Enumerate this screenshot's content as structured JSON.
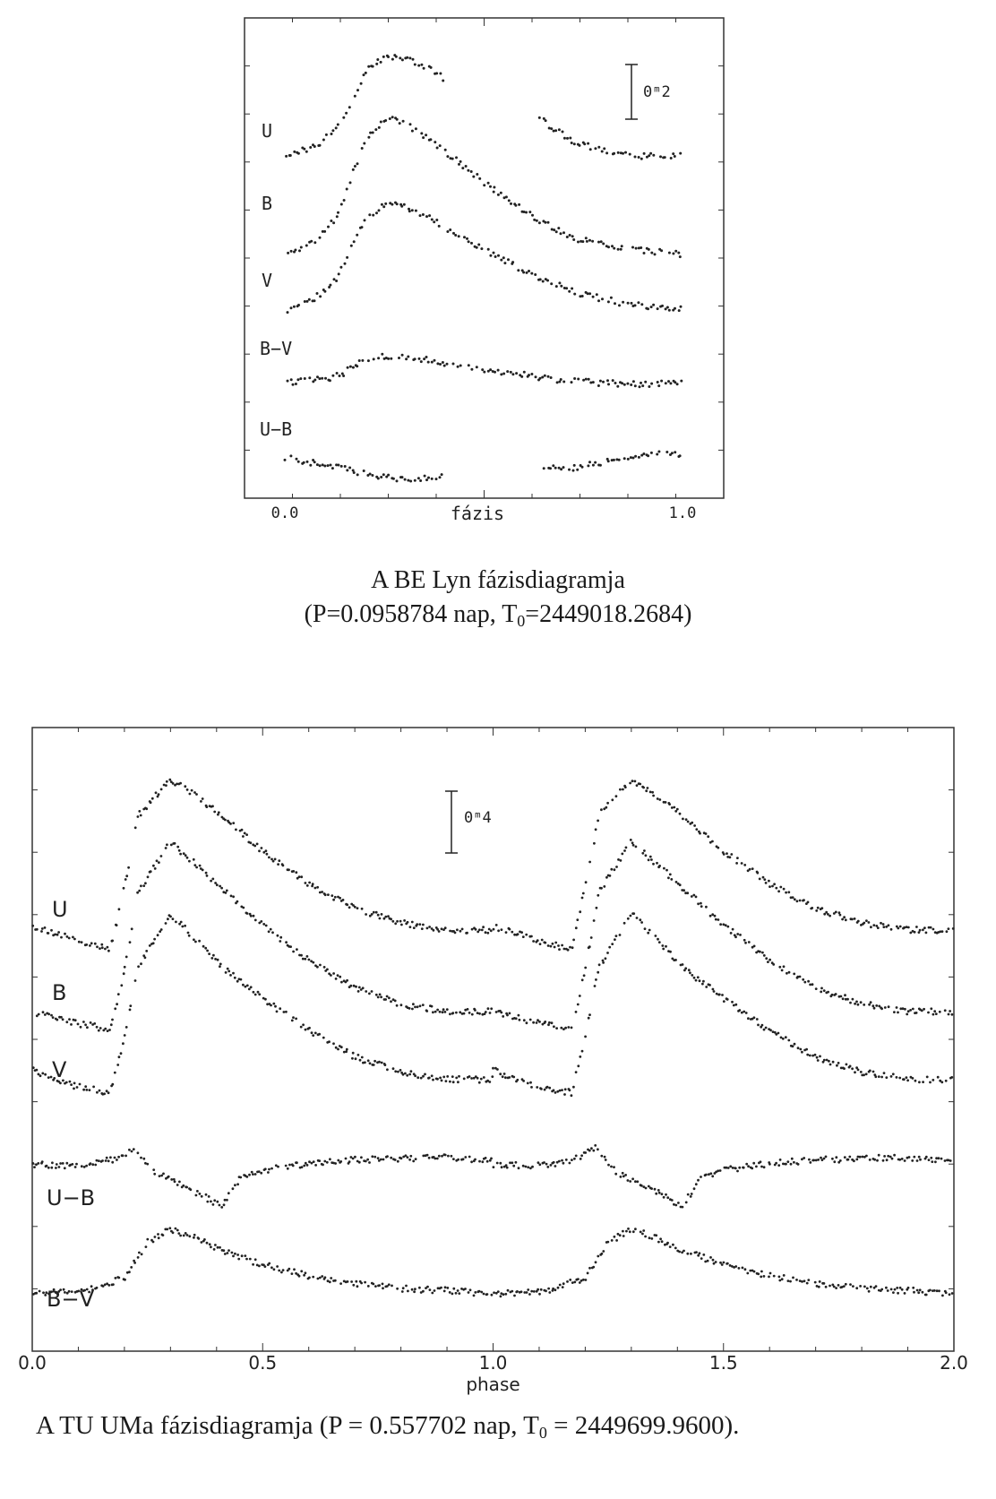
{
  "chart_data": [
    {
      "type": "scatter",
      "title": "A BE Lyn fázisdiagramja",
      "subtitle_prefix": "(P=0.0958784 nap, T",
      "subtitle_sub": "0",
      "subtitle_suffix": "=2449018.2684)",
      "xlabel": "fázis",
      "xlim": [
        0.0,
        1.0
      ],
      "x_tick_labels": [
        "0.0",
        "1.0"
      ],
      "scale_bar": "0ᵐ2",
      "curve_labels": [
        "U",
        "B",
        "V",
        "B−V",
        "U−B"
      ],
      "series": [
        {
          "name": "U",
          "gaps": [
            [
              0.4,
              0.64
            ]
          ],
          "points": [
            [
              0.0,
              0.8
            ],
            [
              0.08,
              0.72
            ],
            [
              0.14,
              0.55
            ],
            [
              0.18,
              0.3
            ],
            [
              0.21,
              0.1
            ],
            [
              0.26,
              0.0
            ],
            [
              0.31,
              0.02
            ],
            [
              0.36,
              0.1
            ],
            [
              0.4,
              0.18
            ],
            [
              0.64,
              0.5
            ],
            [
              0.72,
              0.68
            ],
            [
              0.8,
              0.76
            ],
            [
              0.9,
              0.8
            ],
            [
              1.0,
              0.8
            ]
          ]
        },
        {
          "name": "B",
          "points": [
            [
              0.0,
              1.0
            ],
            [
              0.07,
              0.9
            ],
            [
              0.13,
              0.72
            ],
            [
              0.17,
              0.4
            ],
            [
              0.21,
              0.12
            ],
            [
              0.26,
              0.0
            ],
            [
              0.33,
              0.08
            ],
            [
              0.42,
              0.28
            ],
            [
              0.52,
              0.5
            ],
            [
              0.62,
              0.7
            ],
            [
              0.72,
              0.86
            ],
            [
              0.84,
              0.94
            ],
            [
              1.0,
              0.98
            ]
          ]
        },
        {
          "name": "V",
          "points": [
            [
              0.0,
              1.0
            ],
            [
              0.07,
              0.9
            ],
            [
              0.13,
              0.72
            ],
            [
              0.17,
              0.4
            ],
            [
              0.21,
              0.12
            ],
            [
              0.27,
              0.0
            ],
            [
              0.34,
              0.1
            ],
            [
              0.43,
              0.3
            ],
            [
              0.53,
              0.5
            ],
            [
              0.63,
              0.68
            ],
            [
              0.74,
              0.84
            ],
            [
              0.86,
              0.94
            ],
            [
              1.0,
              0.98
            ]
          ]
        },
        {
          "name": "B−V",
          "points": [
            [
              0.0,
              0.7
            ],
            [
              0.08,
              0.62
            ],
            [
              0.14,
              0.5
            ],
            [
              0.18,
              0.2
            ],
            [
              0.25,
              0.0
            ],
            [
              0.32,
              0.05
            ],
            [
              0.42,
              0.22
            ],
            [
              0.55,
              0.42
            ],
            [
              0.68,
              0.6
            ],
            [
              0.8,
              0.7
            ],
            [
              0.9,
              0.72
            ],
            [
              1.0,
              0.7
            ]
          ]
        },
        {
          "name": "U−B",
          "gaps": [
            [
              0.4,
              0.64
            ]
          ],
          "points": [
            [
              0.0,
              0.2
            ],
            [
              0.1,
              0.45
            ],
            [
              0.2,
              0.8
            ],
            [
              0.28,
              1.0
            ],
            [
              0.34,
              0.95
            ],
            [
              0.4,
              0.9
            ],
            [
              0.64,
              0.6
            ],
            [
              0.74,
              0.55
            ],
            [
              0.84,
              0.2
            ],
            [
              0.92,
              0.05
            ],
            [
              1.0,
              0.1
            ]
          ]
        }
      ]
    },
    {
      "type": "scatter",
      "title_prefix": "A TU UMa fázisdiagramja (P = 0.557702 nap, T",
      "title_sub": "0",
      "title_suffix": " = 2449699.9600).",
      "xlabel": "phase",
      "xlim": [
        0.0,
        2.0
      ],
      "x_tick_labels": [
        "0.0",
        "0.5",
        "1.0",
        "1.5",
        "2.0"
      ],
      "scale_bar": "0ᵐ4",
      "curve_labels": [
        "U",
        "B",
        "V",
        "U−B",
        "B−V"
      ],
      "series": [
        {
          "name": "U",
          "points": [
            [
              0.0,
              0.82
            ],
            [
              0.1,
              0.9
            ],
            [
              0.17,
              0.95
            ],
            [
              0.2,
              0.6
            ],
            [
              0.23,
              0.2
            ],
            [
              0.3,
              0.0
            ],
            [
              0.36,
              0.1
            ],
            [
              0.42,
              0.22
            ],
            [
              0.5,
              0.4
            ],
            [
              0.6,
              0.58
            ],
            [
              0.7,
              0.72
            ],
            [
              0.8,
              0.8
            ],
            [
              0.9,
              0.84
            ],
            [
              1.0,
              0.84
            ]
          ]
        },
        {
          "name": "B",
          "points": [
            [
              0.0,
              0.86
            ],
            [
              0.1,
              0.92
            ],
            [
              0.17,
              0.95
            ],
            [
              0.2,
              0.65
            ],
            [
              0.23,
              0.25
            ],
            [
              0.3,
              0.0
            ],
            [
              0.36,
              0.12
            ],
            [
              0.42,
              0.25
            ],
            [
              0.5,
              0.42
            ],
            [
              0.6,
              0.6
            ],
            [
              0.7,
              0.74
            ],
            [
              0.8,
              0.82
            ],
            [
              0.9,
              0.86
            ],
            [
              1.0,
              0.86
            ]
          ]
        },
        {
          "name": "V",
          "points": [
            [
              0.0,
              0.83
            ],
            [
              0.1,
              0.92
            ],
            [
              0.17,
              0.95
            ],
            [
              0.2,
              0.66
            ],
            [
              0.23,
              0.28
            ],
            [
              0.3,
              0.0
            ],
            [
              0.36,
              0.15
            ],
            [
              0.42,
              0.3
            ],
            [
              0.5,
              0.45
            ],
            [
              0.6,
              0.62
            ],
            [
              0.7,
              0.76
            ],
            [
              0.8,
              0.84
            ],
            [
              0.9,
              0.88
            ],
            [
              1.0,
              0.88
            ]
          ]
        },
        {
          "name": "U−B",
          "points": [
            [
              0.0,
              0.3
            ],
            [
              0.12,
              0.32
            ],
            [
              0.19,
              0.18
            ],
            [
              0.22,
              0.0
            ],
            [
              0.27,
              0.45
            ],
            [
              0.34,
              0.7
            ],
            [
              0.41,
              1.0
            ],
            [
              0.45,
              0.55
            ],
            [
              0.5,
              0.4
            ],
            [
              0.6,
              0.28
            ],
            [
              0.7,
              0.22
            ],
            [
              0.8,
              0.2
            ],
            [
              0.9,
              0.18
            ],
            [
              1.0,
              0.25
            ]
          ]
        },
        {
          "name": "B−V",
          "points": [
            [
              0.0,
              1.0
            ],
            [
              0.12,
              0.95
            ],
            [
              0.2,
              0.75
            ],
            [
              0.25,
              0.2
            ],
            [
              0.3,
              0.0
            ],
            [
              0.36,
              0.15
            ],
            [
              0.42,
              0.35
            ],
            [
              0.5,
              0.55
            ],
            [
              0.6,
              0.72
            ],
            [
              0.7,
              0.85
            ],
            [
              0.8,
              0.92
            ],
            [
              0.9,
              0.95
            ],
            [
              1.0,
              1.0
            ]
          ]
        }
      ]
    }
  ]
}
